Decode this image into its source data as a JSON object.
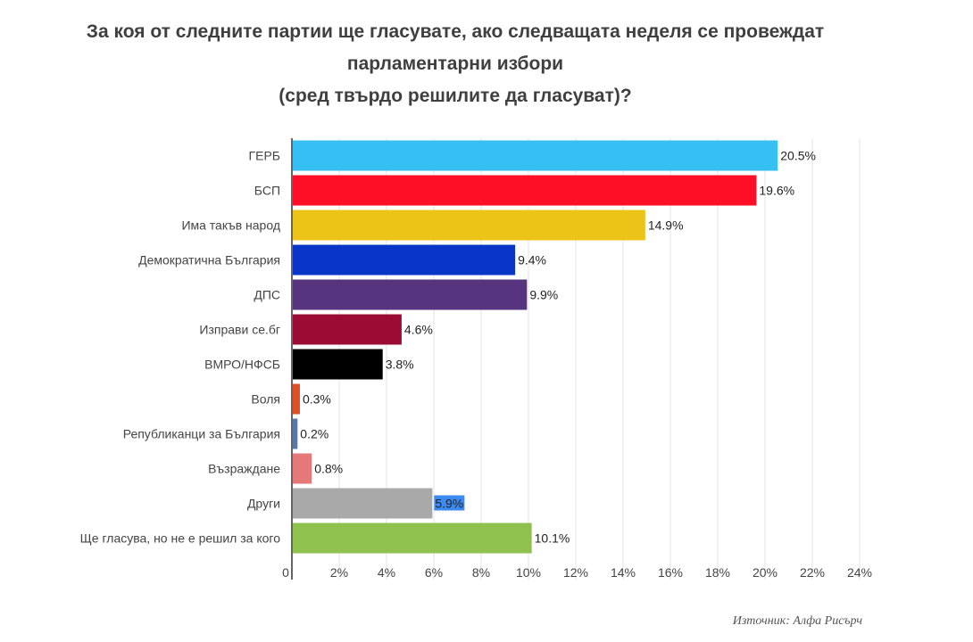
{
  "chart_data": {
    "type": "bar",
    "orientation": "horizontal",
    "title_lines": [
      "За коя от следните партии ще гласувате, ако следващата неделя се провеждат",
      "парламентарни избори",
      "(сред твърдо решилите да гласуват)?"
    ],
    "categories": [
      "ГЕРБ",
      "БСП",
      "Има такъв народ",
      "Демократична България",
      "ДПС",
      "Изправи се.бг",
      "ВМРО/НФСБ",
      "Воля",
      "Републиканци за България",
      "Възраждане",
      "Други",
      "Ще гласува, но не е решил за кого"
    ],
    "values": [
      20.5,
      19.6,
      14.9,
      9.4,
      9.9,
      4.6,
      3.8,
      0.3,
      0.2,
      0.8,
      5.9,
      10.1
    ],
    "data_labels": [
      "20.5%",
      "19.6%",
      "14.9%",
      "9.4%",
      "9.9%",
      "4.6%",
      "3.8%",
      "0.3%",
      "0.2%",
      "0.8%",
      "5.9%",
      "10.1%"
    ],
    "colors": [
      "#36bff2",
      "#fe0f26",
      "#ecc417",
      "#0a35c9",
      "#56357e",
      "#9b0b33",
      "#000000",
      "#de4f24",
      "#5778a4",
      "#e57979",
      "#a9a9a9",
      "#8fc14f"
    ],
    "highlighted_label_index": 10,
    "highlight_color": "#3d8bf2",
    "xlim": [
      0,
      24
    ],
    "ticks": [
      0,
      2,
      4,
      6,
      8,
      10,
      12,
      14,
      16,
      18,
      20,
      22,
      24
    ],
    "tick_labels": [
      "0",
      "2%",
      "4%",
      "6%",
      "8%",
      "10%",
      "12%",
      "14%",
      "16%",
      "18%",
      "20%",
      "22%",
      "24%"
    ],
    "grid": true,
    "source": "Източник: Алфа Рисърч"
  }
}
